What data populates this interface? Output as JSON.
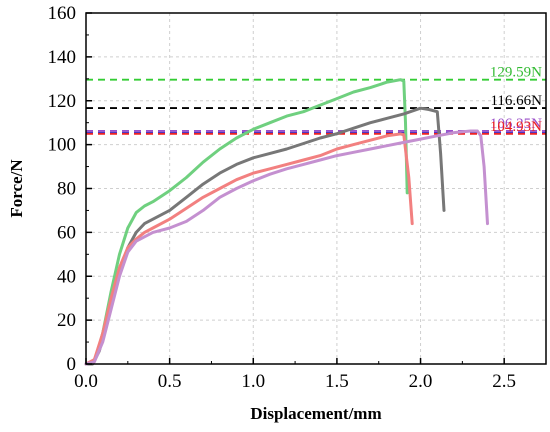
{
  "chart_data": {
    "type": "line",
    "title": "",
    "xlabel": "Displacement/mm",
    "ylabel": "Force/N",
    "xlim": [
      0,
      2.75
    ],
    "ylim": [
      0,
      160
    ],
    "xticks": [
      0.0,
      0.5,
      1.0,
      1.5,
      2.0,
      2.5
    ],
    "xtick_labels": [
      "0.0",
      "0.5",
      "1.0",
      "1.5",
      "2.0",
      "2.5"
    ],
    "yticks": [
      0,
      20,
      40,
      60,
      80,
      100,
      120,
      140,
      160
    ],
    "ytick_labels": [
      "0",
      "20",
      "40",
      "60",
      "80",
      "100",
      "120",
      "140",
      "160"
    ],
    "grid": true,
    "legend": "none",
    "series": [
      {
        "color": "#6fd07f",
        "x": [
          0.0,
          0.03,
          0.06,
          0.1,
          0.15,
          0.2,
          0.25,
          0.3,
          0.35,
          0.4,
          0.5,
          0.6,
          0.7,
          0.8,
          0.9,
          1.0,
          1.1,
          1.2,
          1.3,
          1.4,
          1.5,
          1.6,
          1.7,
          1.8,
          1.88,
          1.9,
          1.91,
          1.92
        ],
        "y": [
          0,
          0,
          3,
          14,
          33,
          50,
          62,
          69,
          72,
          74,
          79,
          85,
          92,
          98,
          103,
          107,
          110,
          113,
          115,
          118,
          121,
          124,
          126,
          128.5,
          129.6,
          129,
          110,
          78
        ]
      },
      {
        "color": "#777777",
        "x": [
          0.0,
          0.04,
          0.08,
          0.12,
          0.18,
          0.25,
          0.3,
          0.35,
          0.4,
          0.5,
          0.6,
          0.7,
          0.8,
          0.9,
          1.0,
          1.1,
          1.2,
          1.3,
          1.4,
          1.5,
          1.6,
          1.7,
          1.8,
          1.9,
          2.0,
          2.05,
          2.1,
          2.12,
          2.14
        ],
        "y": [
          0,
          0,
          6,
          18,
          36,
          53,
          60,
          64,
          66,
          70,
          76,
          82,
          87,
          91,
          94,
          96,
          98,
          100.5,
          103,
          105,
          107.5,
          110,
          112,
          114,
          116.6,
          116,
          115,
          96,
          70
        ]
      },
      {
        "color": "#f28080",
        "x": [
          0.0,
          0.05,
          0.1,
          0.15,
          0.2,
          0.25,
          0.3,
          0.35,
          0.4,
          0.5,
          0.6,
          0.7,
          0.8,
          0.9,
          1.0,
          1.1,
          1.2,
          1.3,
          1.4,
          1.5,
          1.6,
          1.7,
          1.8,
          1.88,
          1.9,
          1.93,
          1.95
        ],
        "y": [
          0,
          2,
          14,
          30,
          44,
          53,
          57,
          60,
          62,
          66,
          71,
          76,
          80,
          84,
          87,
          89,
          91,
          93,
          95,
          98,
          100,
          102,
          104,
          104.9,
          104.5,
          85,
          64
        ]
      },
      {
        "color": "#c490d0",
        "x": [
          0.0,
          0.05,
          0.1,
          0.15,
          0.2,
          0.25,
          0.3,
          0.35,
          0.4,
          0.5,
          0.6,
          0.7,
          0.8,
          0.9,
          1.0,
          1.1,
          1.2,
          1.3,
          1.4,
          1.5,
          1.6,
          1.7,
          1.8,
          1.9,
          2.0,
          2.1,
          2.2,
          2.3,
          2.34,
          2.36,
          2.38,
          2.4
        ],
        "y": [
          0,
          1,
          10,
          25,
          40,
          51,
          56,
          58,
          60,
          62,
          65,
          70,
          76,
          80,
          83.5,
          86.5,
          89,
          91,
          93,
          95,
          96.5,
          98,
          99.5,
          101,
          102.5,
          104,
          105.5,
          106.2,
          106.2,
          104,
          90,
          64
        ]
      }
    ],
    "reference_lines": [
      {
        "y": 129.59,
        "color": "#33cc33",
        "label": "129.59N",
        "label_color": "#33bb33"
      },
      {
        "y": 116.66,
        "color": "#000000",
        "label": "116.66N",
        "label_color": "#000000"
      },
      {
        "y": 106.25,
        "color": "#9b4fc9",
        "label": "106.25N",
        "label_color": "#9b4fc9"
      },
      {
        "y": 105.4,
        "color": "#3a3ad6",
        "label": "",
        "label_color": ""
      },
      {
        "y": 104.93,
        "color": "#ee2222",
        "label": "104.93N",
        "label_color": "#ee2222"
      }
    ]
  }
}
